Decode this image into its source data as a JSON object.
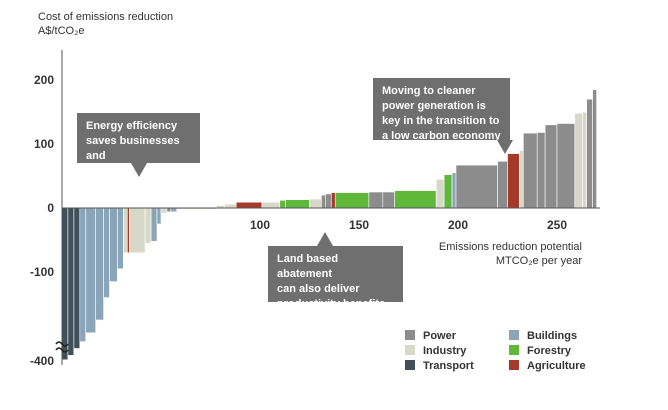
{
  "chart_data": {
    "type": "bar",
    "subtype": "marginal-abatement-cost-curve",
    "title": "Cost of emissions reduction",
    "ylabel": "A$/tCO₂e",
    "xlabel": "Emissions reduction potential MTCO₂e per year",
    "xlabel_line1": "Emissions reduction potential",
    "xlabel_line2": "MTCO₂e per year",
    "xlim": [
      0,
      272
    ],
    "ylim": [
      -400,
      250
    ],
    "yticks": [
      200,
      100,
      0,
      -100,
      -400
    ],
    "xticks": [
      100,
      150,
      200,
      250
    ],
    "categories": [
      "Power",
      "Industry",
      "Transport",
      "Buildings",
      "Forestry",
      "Agriculture"
    ],
    "colors": {
      "Power": "#8c8c8c",
      "Industry": "#d8d8c8",
      "Transport": "#40505a",
      "Buildings": "#8aa4b8",
      "Forestry": "#5fb83a",
      "Agriculture": "#a33a2a"
    },
    "series": [
      {
        "x0": 0,
        "x1": 3,
        "value": -390,
        "sector": "Transport"
      },
      {
        "x0": 3,
        "x1": 6,
        "value": -355,
        "sector": "Transport"
      },
      {
        "x0": 6,
        "x1": 9,
        "value": -300,
        "sector": "Transport"
      },
      {
        "x0": 9,
        "x1": 12,
        "value": -245,
        "sector": "Buildings"
      },
      {
        "x0": 12,
        "x1": 17,
        "value": -195,
        "sector": "Buildings"
      },
      {
        "x0": 17,
        "x1": 21,
        "value": -175,
        "sector": "Buildings"
      },
      {
        "x0": 21,
        "x1": 24,
        "value": -140,
        "sector": "Buildings"
      },
      {
        "x0": 24,
        "x1": 28,
        "value": -115,
        "sector": "Buildings"
      },
      {
        "x0": 28,
        "x1": 31,
        "value": -95,
        "sector": "Buildings"
      },
      {
        "x0": 31,
        "x1": 33,
        "value": -70,
        "sector": "Industry"
      },
      {
        "x0": 33,
        "x1": 34,
        "value": -70,
        "sector": "Agriculture"
      },
      {
        "x0": 34,
        "x1": 42,
        "value": -70,
        "sector": "Industry"
      },
      {
        "x0": 42,
        "x1": 45,
        "value": -55,
        "sector": "Industry"
      },
      {
        "x0": 45,
        "x1": 48,
        "value": -52,
        "sector": "Buildings"
      },
      {
        "x0": 48,
        "x1": 50,
        "value": -25,
        "sector": "Buildings"
      },
      {
        "x0": 50,
        "x1": 53,
        "value": -8,
        "sector": "Industry"
      },
      {
        "x0": 53,
        "x1": 55,
        "value": -6,
        "sector": "Power"
      },
      {
        "x0": 55,
        "x1": 58,
        "value": -6,
        "sector": "Buildings"
      },
      {
        "x0": 58,
        "x1": 78,
        "value": -2,
        "sector": "Industry"
      },
      {
        "x0": 78,
        "x1": 82,
        "value": 4,
        "sector": "Industry"
      },
      {
        "x0": 82,
        "x1": 88,
        "value": 6,
        "sector": "Industry"
      },
      {
        "x0": 88,
        "x1": 101,
        "value": 9,
        "sector": "Agriculture"
      },
      {
        "x0": 101,
        "x1": 110,
        "value": 9,
        "sector": "Industry"
      },
      {
        "x0": 110,
        "x1": 113,
        "value": 12,
        "sector": "Forestry"
      },
      {
        "x0": 113,
        "x1": 125,
        "value": 13,
        "sector": "Forestry"
      },
      {
        "x0": 125,
        "x1": 131,
        "value": 14,
        "sector": "Industry"
      },
      {
        "x0": 131,
        "x1": 133,
        "value": 20,
        "sector": "Power"
      },
      {
        "x0": 133,
        "x1": 136,
        "value": 22,
        "sector": "Power"
      },
      {
        "x0": 136,
        "x1": 138,
        "value": 24,
        "sector": "Agriculture"
      },
      {
        "x0": 138,
        "x1": 155,
        "value": 24,
        "sector": "Forestry"
      },
      {
        "x0": 155,
        "x1": 162,
        "value": 25,
        "sector": "Power"
      },
      {
        "x0": 162,
        "x1": 168,
        "value": 25,
        "sector": "Power"
      },
      {
        "x0": 168,
        "x1": 189,
        "value": 27,
        "sector": "Forestry"
      },
      {
        "x0": 189,
        "x1": 193,
        "value": 45,
        "sector": "Industry"
      },
      {
        "x0": 193,
        "x1": 197,
        "value": 52,
        "sector": "Forestry"
      },
      {
        "x0": 197,
        "x1": 199,
        "value": 55,
        "sector": "Buildings"
      },
      {
        "x0": 199,
        "x1": 220,
        "value": 67,
        "sector": "Power"
      },
      {
        "x0": 220,
        "x1": 225,
        "value": 73,
        "sector": "Power"
      },
      {
        "x0": 225,
        "x1": 231,
        "value": 85,
        "sector": "Agriculture"
      },
      {
        "x0": 231,
        "x1": 233,
        "value": 90,
        "sector": "Industry"
      },
      {
        "x0": 233,
        "x1": 240,
        "value": 117,
        "sector": "Power"
      },
      {
        "x0": 240,
        "x1": 244,
        "value": 118,
        "sector": "Power"
      },
      {
        "x0": 244,
        "x1": 250,
        "value": 130,
        "sector": "Power"
      },
      {
        "x0": 250,
        "x1": 259,
        "value": 132,
        "sector": "Power"
      },
      {
        "x0": 259,
        "x1": 263,
        "value": 148,
        "sector": "Industry"
      },
      {
        "x0": 263,
        "x1": 265,
        "value": 150,
        "sector": "Industry"
      },
      {
        "x0": 265,
        "x1": 268,
        "value": 170,
        "sector": "Power"
      },
      {
        "x0": 268,
        "x1": 270,
        "value": 185,
        "sector": "Power"
      }
    ],
    "annotations": [
      {
        "text": "Energy efficiency\nsaves businesses and\nhouseholds money"
      },
      {
        "text": "Moving to cleaner\npower generation is\nkey in the transition to\na low carbon economy"
      },
      {
        "text": "Land based abatement\ncan also deliver\nproductivity benefits"
      }
    ],
    "legend": [
      {
        "label": "Power",
        "color": "#8c8c8c"
      },
      {
        "label": "Buildings",
        "color": "#8aa4b8"
      },
      {
        "label": "Industry",
        "color": "#d8d8c8"
      },
      {
        "label": "Forestry",
        "color": "#5fb83a"
      },
      {
        "label": "Transport",
        "color": "#40505a"
      },
      {
        "label": "Agriculture",
        "color": "#a33a2a"
      }
    ]
  }
}
